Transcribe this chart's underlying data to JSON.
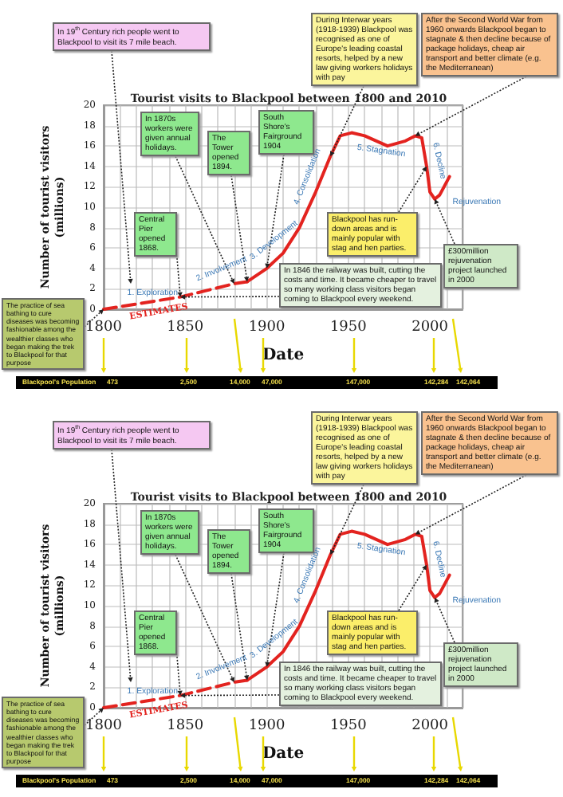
{
  "chart_data": [
    {
      "type": "line",
      "title": "Tourist visits to Blackpool between 1800 and 2010",
      "xlabel": "Date",
      "ylabel": "Number of tourist visitors (millions)",
      "xlim": [
        1800,
        2020
      ],
      "ylim": [
        0,
        20
      ],
      "xticks": [
        1800,
        {
          "value": 1810,
          "label": null
        },
        {
          "value": 1820,
          "label": null
        },
        {
          "value": 1830,
          "label": null
        },
        {
          "value": 1840,
          "label": null
        },
        1850,
        {
          "value": 1860,
          "label": null
        },
        {
          "value": 1870,
          "label": null
        },
        {
          "value": 1880,
          "label": null
        },
        {
          "value": 1890,
          "label": null
        },
        1900,
        {
          "value": 1910,
          "label": null
        },
        {
          "value": 1920,
          "label": null
        },
        {
          "value": 1930,
          "label": null
        },
        {
          "value": 1940,
          "label": null
        },
        1950,
        {
          "value": 1960,
          "label": null
        },
        {
          "value": 1970,
          "label": null
        },
        {
          "value": 1980,
          "label": null
        },
        {
          "value": 1990,
          "label": null
        },
        2000,
        {
          "value": 2010,
          "label": null
        },
        {
          "value": 2020,
          "label": null
        }
      ],
      "yticks": [
        0,
        2,
        4,
        6,
        8,
        10,
        12,
        14,
        16,
        18,
        20
      ],
      "grid": true,
      "marker": "none",
      "series": [
        {
          "name": "ESTIMATES",
          "color": "#e3231f",
          "line_style": "dashed",
          "x": [
            1800,
            1847,
            1880,
            1888
          ],
          "values": [
            0,
            1.2,
            2.5,
            2.7
          ]
        },
        {
          "color": "#e3231f",
          "line_style": "solid",
          "x": [
            1888,
            1900,
            1910,
            1920,
            1930,
            1939,
            1945,
            1952,
            1960,
            1974,
            1985,
            1991,
            1995,
            1998,
            2000,
            2003,
            2006,
            2012
          ],
          "values": [
            2.7,
            4,
            5.5,
            8,
            11.5,
            15,
            17,
            17.3,
            17,
            16,
            16.5,
            17,
            16.8,
            14,
            11.5,
            10.8,
            11.2,
            13
          ]
        }
      ],
      "annotations": [
        "In 19$^{th}$ Century rich people went to Blackpool to visit its 7 mile beach.",
        {
          "text": "During Interwar years (1918-1939) Blackpool was recognised as one of Europe's leading coastal resorts, helped by a new law giving workers holidays with pay",
          "x": 1939,
          "y": 15
        },
        {
          "text": "After the Second World War from 1960 onwards Blackpool began to stagnate & then decline because of package holidays, cheap air transport and better climate (e.g. the Mediterranean)",
          "x": 1991,
          "y": 17
        },
        {
          "text": "In 1870s workers were given annual holidays.",
          "x": 1880,
          "y": 2.5
        },
        {
          "text": "The Tower opened 1894.",
          "x": 1888,
          "y": 2.7
        },
        {
          "text": "South Shore's Fairground 1904",
          "x": 1900,
          "y": 4
        },
        {
          "text": "Central Pier opened 1868.",
          "x": 1847,
          "y": 1.2
        },
        {
          "text": "Blackpool has run-down areas and is mainly popular with stag and hen parties.",
          "x": 1998,
          "y": 14
        },
        {
          "text": "£300million rejuvenation project launched in 2000",
          "x": 2003,
          "y": 10.8
        },
        {
          "text": "The practice of sea bathing to cure diseases was becoming fashionable among the wealthier classes who began making the trek to Blackpool for that purpose",
          "x": 1800,
          "y": 0
        },
        {
          "text": "In 1846 the railway was built, cutting the costs and time. It became cheaper to travel so many working class visitors began coming to Blackpool every weekend.",
          "x": 1847,
          "y": 1.2
        },
        "Blackpool's Population",
        "473",
        "2,500",
        "14,000",
        "47,000",
        "147,000",
        "142,284",
        "142,064",
        {
          "text": "1. Exploration",
          "x": 1830,
          "y": 0.8
        },
        {
          "text": "2. Involvement",
          "x": 1872,
          "y": 2.2
        },
        {
          "text": "3. Development",
          "x": 1905,
          "y": 4.75
        },
        {
          "text": "4. Consolidation",
          "x": 1925,
          "y": 9.75
        },
        {
          "text": "5. Stagnation",
          "x": 1974,
          "y": 16
        },
        {
          "text": "6. Decline",
          "x": 1998,
          "y": 14
        },
        {
          "text": "Rejuvenation",
          "x": 2012,
          "y": 13
        }
      ]
    },
    {
      "type": "line",
      "title": "Tourist visits to Blackpool between 1800 and 2010",
      "xlabel": "Date",
      "ylabel": "Number of tourist visitors (millions)",
      "xlim": [
        1800,
        2020
      ],
      "ylim": [
        0,
        20
      ],
      "xticks": [
        1800,
        {
          "value": 1810,
          "label": null
        },
        {
          "value": 1820,
          "label": null
        },
        {
          "value": 1830,
          "label": null
        },
        {
          "value": 1840,
          "label": null
        },
        1850,
        {
          "value": 1860,
          "label": null
        },
        {
          "value": 1870,
          "label": null
        },
        {
          "value": 1880,
          "label": null
        },
        {
          "value": 1890,
          "label": null
        },
        1900,
        {
          "value": 1910,
          "label": null
        },
        {
          "value": 1920,
          "label": null
        },
        {
          "value": 1930,
          "label": null
        },
        {
          "value": 1940,
          "label": null
        },
        1950,
        {
          "value": 1960,
          "label": null
        },
        {
          "value": 1970,
          "label": null
        },
        {
          "value": 1980,
          "label": null
        },
        {
          "value": 1990,
          "label": null
        },
        2000,
        {
          "value": 2010,
          "label": null
        },
        {
          "value": 2020,
          "label": null
        }
      ],
      "yticks": [
        0,
        2,
        4,
        6,
        8,
        10,
        12,
        14,
        16,
        18,
        20
      ],
      "grid": true,
      "marker": "none",
      "series": [
        {
          "name": "ESTIMATES",
          "color": "#e3231f",
          "line_style": "dashed",
          "x": [
            1800,
            1847,
            1880,
            1888
          ],
          "values": [
            0,
            1.2,
            2.5,
            2.7
          ]
        },
        {
          "color": "#e3231f",
          "line_style": "solid",
          "x": [
            1888,
            1900,
            1910,
            1920,
            1930,
            1939,
            1945,
            1952,
            1960,
            1974,
            1985,
            1991,
            1995,
            1998,
            2000,
            2003,
            2006,
            2012
          ],
          "values": [
            2.7,
            4,
            5.5,
            8,
            11.5,
            15,
            17,
            17.3,
            17,
            16,
            16.5,
            17,
            16.8,
            14,
            11.5,
            10.8,
            11.2,
            13
          ]
        }
      ],
      "annotations": [
        "In 19$^{th}$ Century rich people went to Blackpool to visit its 7 mile beach.",
        {
          "text": "During Interwar years (1918-1939) Blackpool was recognised as one of Europe's leading coastal resorts, helped by a new law giving workers holidays with pay",
          "x": 1939,
          "y": 15
        },
        {
          "text": "After the Second World War from 1960 onwards Blackpool began to stagnate & then decline because of package holidays, cheap air transport and better climate (e.g. the Mediterranean)",
          "x": 1991,
          "y": 17
        },
        {
          "text": "In 1870s workers were given annual holidays.",
          "x": 1880,
          "y": 2.5
        },
        {
          "text": "The Tower opened 1894.",
          "x": 1888,
          "y": 2.7
        },
        {
          "text": "South Shore's Fairground 1904",
          "x": 1900,
          "y": 4
        },
        {
          "text": "Central Pier opened 1868.",
          "x": 1847,
          "y": 1.2
        },
        {
          "text": "Blackpool has run-down areas and is mainly popular with stag and hen parties.",
          "x": 1998,
          "y": 14
        },
        {
          "text": "£300million rejuvenation project launched in 2000",
          "x": 2003,
          "y": 10.8
        },
        {
          "text": "The practice of sea bathing to cure diseases was becoming fashionable among the wealthier classes who began making the trek to Blackpool for that purpose",
          "x": 1800,
          "y": 0
        },
        {
          "text": "In 1846 the railway was built, cutting the costs and time. It became cheaper to travel so many working class visitors began coming to Blackpool every weekend.",
          "x": 1847,
          "y": 1.2
        },
        "Blackpool's Population",
        "473",
        "2,500",
        "14,000",
        "47,000",
        "147,000",
        "142,284",
        "142,064",
        {
          "text": "1. Exploration",
          "x": 1830,
          "y": 0.8
        },
        {
          "text": "2. Involvement",
          "x": 1872,
          "y": 2.2
        },
        {
          "text": "3. Development",
          "x": 1905,
          "y": 4.75
        },
        {
          "text": "4. Consolidation",
          "x": 1925,
          "y": 9.75
        },
        {
          "text": "5. Stagnation",
          "x": 1974,
          "y": 16
        },
        {
          "text": "6. Decline",
          "x": 1998,
          "y": 14
        },
        {
          "text": "Rejuvenation",
          "x": 2012,
          "y": 13
        }
      ]
    }
  ]
}
